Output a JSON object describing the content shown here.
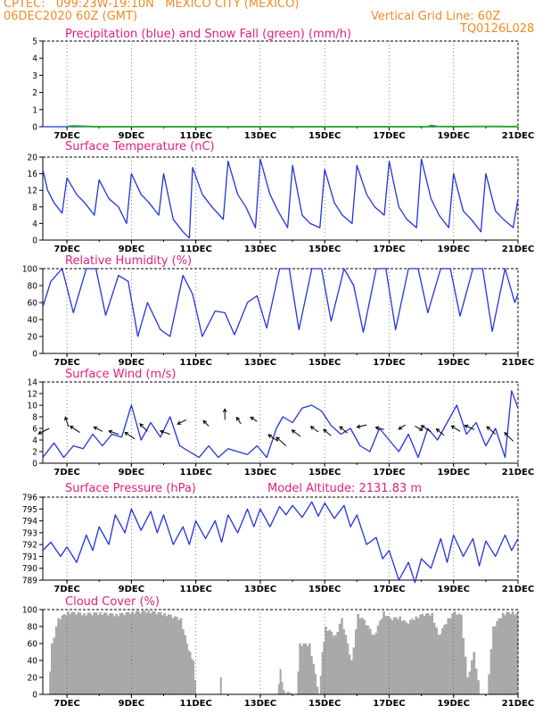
{
  "header": {
    "line1": "CPTEC:   099:23W-19:10N   MEXICO CITY (MEXICO)",
    "line2": "06DEC2020 60Z (GMT)",
    "grid_note": "Vertical Grid Line: 60Z",
    "code": "TQ0126L028"
  },
  "colors": {
    "header": "#f08a24",
    "title": "#e0207a",
    "line": "#2233dd",
    "snow": "#22aa22",
    "cloud": "#a9a9a9",
    "arrow": "#000000"
  },
  "x_tick_labels": [
    "7DEC",
    "9DEC",
    "11DEC",
    "13DEC",
    "15DEC",
    "17DEC",
    "19DEC",
    "21DEC"
  ],
  "chart_data": [
    {
      "id": "precip",
      "type": "line",
      "title": "Precipitation (blue) and Snow Fall (green) (mm/h)",
      "ylim": [
        0,
        5
      ],
      "yticks": [
        0,
        1,
        2,
        3,
        4,
        5
      ],
      "x_range_days": [
        6.25,
        21
      ],
      "series": [
        {
          "name": "precipitation",
          "x": [
            6.25,
            21
          ],
          "values": [
            0,
            0
          ]
        },
        {
          "name": "snow",
          "x": [
            7.0,
            7.2,
            7.5,
            7.8,
            8.0,
            18.2,
            18.3,
            18.5,
            19.0,
            20.0,
            21.0
          ],
          "values": [
            0.02,
            0.05,
            0.03,
            0.01,
            0.0,
            0.0,
            0.08,
            0.02,
            0.01,
            0.02,
            0.01
          ]
        }
      ]
    },
    {
      "id": "temperature",
      "type": "line",
      "title": "Surface Temperature (nC)",
      "ylim": [
        0,
        20
      ],
      "yticks": [
        0,
        4,
        8,
        12,
        16,
        20
      ],
      "series": [
        {
          "name": "temperature",
          "x": [
            6.25,
            6.4,
            6.6,
            6.85,
            7.0,
            7.3,
            7.55,
            7.85,
            8.0,
            8.3,
            8.6,
            8.85,
            9.0,
            9.3,
            9.55,
            9.85,
            10.0,
            10.3,
            10.6,
            10.8,
            10.9,
            11.2,
            11.5,
            11.85,
            12.0,
            12.3,
            12.55,
            12.85,
            13.0,
            13.3,
            13.55,
            13.85,
            14.0,
            14.3,
            14.55,
            14.85,
            15.0,
            15.3,
            15.55,
            15.85,
            16.0,
            16.3,
            16.55,
            16.85,
            17.0,
            17.3,
            17.55,
            17.85,
            18.0,
            18.3,
            18.55,
            18.85,
            19.0,
            19.3,
            19.55,
            19.85,
            20.0,
            20.3,
            20.55,
            20.85,
            21.0
          ],
          "values": [
            17,
            12,
            9,
            6.5,
            15,
            11,
            9,
            6,
            14.5,
            10,
            8,
            4,
            16,
            11,
            9,
            6,
            16,
            5,
            2,
            0.5,
            17.5,
            11,
            8,
            5,
            19,
            11,
            8,
            3,
            19.5,
            11,
            7,
            3,
            18,
            6,
            4,
            3,
            17,
            9,
            6,
            4,
            18,
            11,
            8,
            6,
            19,
            8,
            5,
            3,
            19.5,
            10,
            6,
            3,
            16,
            7,
            5,
            2,
            16,
            7,
            5,
            3,
            10
          ]
        }
      ]
    },
    {
      "id": "humidity",
      "type": "line",
      "title": "Relative Humidity (%)",
      "ylim": [
        0,
        100
      ],
      "yticks": [
        0,
        20,
        40,
        60,
        80,
        100
      ],
      "series": [
        {
          "name": "humidity",
          "x": [
            6.25,
            6.5,
            6.85,
            7.2,
            7.6,
            7.9,
            8.2,
            8.6,
            8.9,
            9.2,
            9.5,
            9.9,
            10.2,
            10.6,
            10.9,
            11.2,
            11.6,
            11.9,
            12.2,
            12.6,
            12.9,
            13.2,
            13.6,
            13.9,
            14.2,
            14.6,
            14.9,
            15.2,
            15.6,
            15.9,
            16.2,
            16.6,
            16.9,
            17.2,
            17.6,
            17.9,
            18.2,
            18.6,
            18.9,
            19.2,
            19.6,
            19.9,
            20.2,
            20.6,
            20.9,
            21.0
          ],
          "values": [
            55,
            85,
            100,
            48,
            100,
            100,
            45,
            92,
            85,
            20,
            60,
            28,
            20,
            92,
            70,
            20,
            50,
            48,
            22,
            60,
            68,
            30,
            100,
            100,
            28,
            100,
            100,
            38,
            100,
            80,
            25,
            100,
            100,
            28,
            100,
            100,
            48,
            100,
            100,
            44,
            100,
            100,
            26,
            100,
            60,
            70
          ]
        }
      ]
    },
    {
      "id": "wind",
      "type": "line",
      "title": "Surface Wind (m/s)",
      "ylim": [
        0,
        14
      ],
      "yticks": [
        0,
        2,
        4,
        6,
        8,
        10,
        12,
        14
      ],
      "series": [
        {
          "name": "wind_speed",
          "x": [
            6.25,
            6.6,
            6.9,
            7.2,
            7.5,
            7.8,
            8.1,
            8.4,
            8.7,
            9.0,
            9.3,
            9.6,
            9.9,
            10.2,
            10.5,
            10.8,
            11.1,
            11.4,
            11.7,
            12.0,
            12.3,
            12.6,
            12.9,
            13.2,
            13.5,
            13.7,
            14.0,
            14.3,
            14.6,
            14.9,
            15.2,
            15.5,
            15.8,
            16.1,
            16.4,
            16.7,
            17.0,
            17.3,
            17.6,
            17.9,
            18.2,
            18.5,
            18.8,
            19.1,
            19.4,
            19.7,
            20.0,
            20.3,
            20.6,
            20.8,
            21.0
          ],
          "values": [
            1,
            3.5,
            1,
            3,
            2.5,
            5,
            3,
            5,
            4.5,
            10,
            4,
            7,
            4.5,
            8,
            3,
            2,
            1,
            3,
            1,
            2.5,
            2,
            1.5,
            3,
            1,
            6,
            8,
            7,
            9.5,
            10,
            9,
            6.5,
            5,
            6,
            3,
            2,
            6,
            4,
            2,
            5,
            1,
            6,
            4,
            7,
            10,
            5,
            7,
            3,
            6,
            1,
            12.5,
            9.5
          ]
        }
      ],
      "arrows_note": "wind direction arrows"
    },
    {
      "id": "pressure",
      "type": "line",
      "title": "Surface Pressure (hPa)",
      "annotation": "Model Altitude: 2131.83 m",
      "ylim": [
        789,
        796
      ],
      "yticks": [
        789,
        790,
        791,
        792,
        793,
        794,
        795,
        796
      ],
      "series": [
        {
          "name": "pressure",
          "x": [
            6.25,
            6.5,
            6.8,
            7.0,
            7.3,
            7.6,
            7.8,
            8.0,
            8.3,
            8.5,
            8.8,
            9.0,
            9.3,
            9.6,
            9.8,
            10.0,
            10.3,
            10.6,
            10.8,
            11.0,
            11.3,
            11.6,
            11.8,
            12.0,
            12.3,
            12.6,
            12.8,
            13.0,
            13.3,
            13.6,
            13.8,
            14.0,
            14.3,
            14.6,
            14.8,
            15.0,
            15.3,
            15.6,
            15.8,
            16.0,
            16.3,
            16.6,
            16.8,
            17.0,
            17.3,
            17.6,
            17.8,
            18.0,
            18.3,
            18.6,
            18.8,
            19.0,
            19.3,
            19.6,
            19.8,
            20.0,
            20.3,
            20.6,
            20.8,
            21.0
          ],
          "values": [
            791.5,
            792.2,
            791,
            791.8,
            790.5,
            792.8,
            791.5,
            793.5,
            792,
            794.5,
            793,
            795,
            793.2,
            794.8,
            793,
            794.5,
            792,
            793.5,
            792,
            794,
            792.5,
            794,
            792.2,
            794.5,
            793,
            795,
            793.5,
            795,
            793.5,
            795.2,
            794.5,
            795.3,
            794.3,
            795.6,
            794.4,
            795.5,
            794.2,
            795.3,
            793.5,
            794.5,
            792,
            792.6,
            790.8,
            791.5,
            789,
            790.5,
            788.8,
            790.8,
            790,
            792.5,
            790.5,
            792.8,
            791,
            792.5,
            790.2,
            792.3,
            791,
            792.8,
            791.5,
            792.5
          ]
        }
      ]
    },
    {
      "id": "cloud",
      "type": "area",
      "title": "Cloud Cover (%)",
      "ylim": [
        0,
        100
      ],
      "yticks": [
        0,
        20,
        40,
        60,
        80,
        100
      ],
      "series": [
        {
          "name": "cloud_cover",
          "x": [
            6.25,
            6.4,
            6.5,
            6.7,
            7.0,
            7.5,
            8.0,
            8.5,
            9.0,
            9.5,
            10.0,
            10.5,
            10.7,
            10.8,
            10.9,
            11.0,
            11.2,
            11.7,
            11.75,
            11.8,
            13.5,
            13.6,
            13.7,
            14.0,
            14.1,
            14.2,
            14.5,
            14.8,
            14.9,
            15.0,
            15.3,
            15.5,
            15.8,
            16.0,
            16.2,
            16.5,
            16.8,
            17.0,
            17.3,
            17.5,
            17.8,
            18.0,
            18.3,
            18.5,
            18.8,
            19.0,
            19.2,
            19.4,
            19.6,
            19.8,
            20.0,
            20.2,
            20.5,
            20.8,
            21.0
          ],
          "values": [
            0,
            0,
            60,
            90,
            98,
            96,
            97,
            95,
            98,
            99,
            96,
            90,
            60,
            50,
            40,
            0,
            0,
            0,
            20,
            0,
            0,
            30,
            5,
            0,
            0,
            60,
            60,
            0,
            50,
            80,
            70,
            90,
            40,
            95,
            88,
            70,
            98,
            90,
            92,
            85,
            92,
            95,
            96,
            70,
            90,
            98,
            94,
            20,
            50,
            0,
            0,
            80,
            96,
            98,
            95
          ]
        }
      ]
    }
  ]
}
